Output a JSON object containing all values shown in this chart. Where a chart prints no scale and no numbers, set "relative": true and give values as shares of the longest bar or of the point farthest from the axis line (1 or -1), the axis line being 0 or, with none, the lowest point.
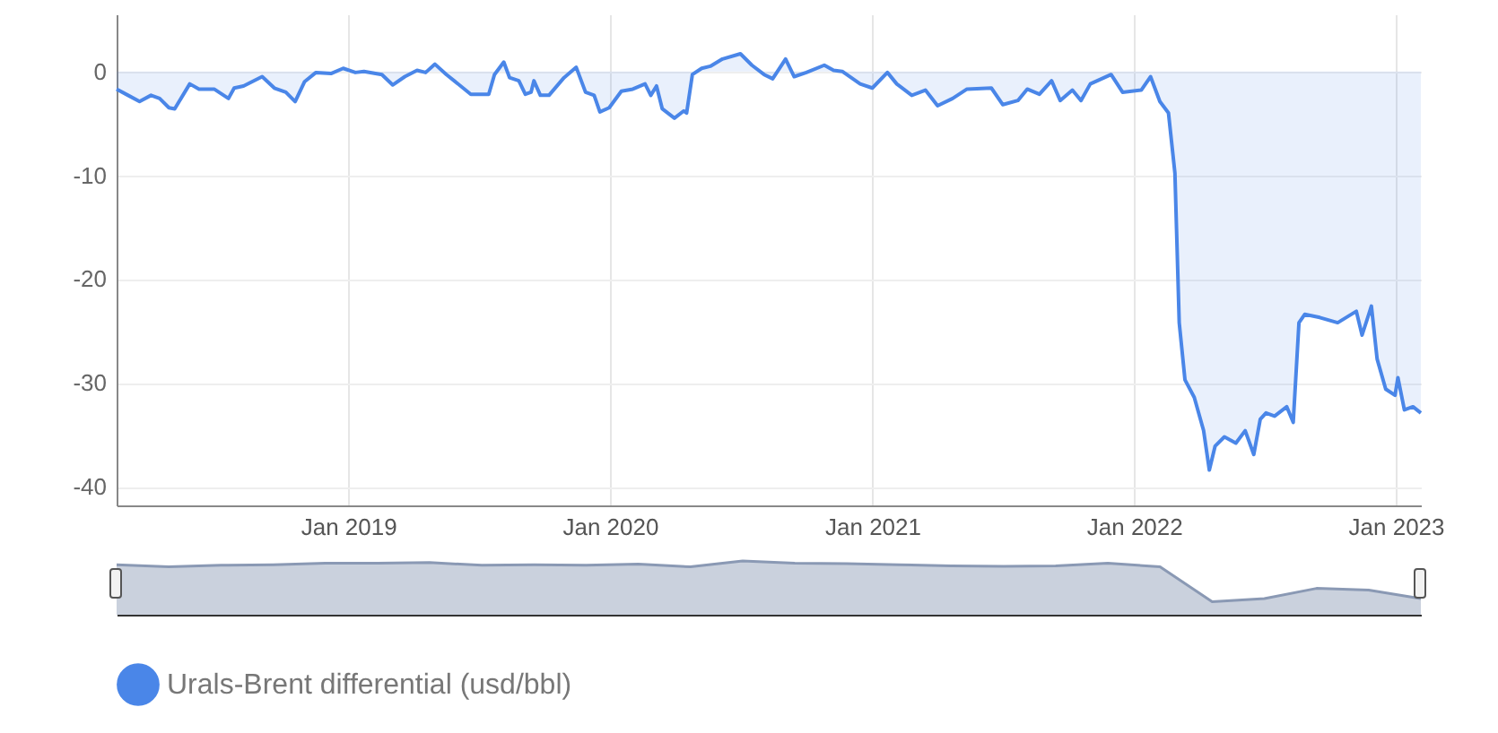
{
  "chart_data": [
    {
      "type": "area",
      "x": [
        "2018-02-12",
        "2018-02-28",
        "2018-03-16",
        "2018-04-01",
        "2018-04-13",
        "2018-04-26",
        "2018-05-04",
        "2018-05-25",
        "2018-06-07",
        "2018-06-28",
        "2018-07-18",
        "2018-07-26",
        "2018-08-08",
        "2018-09-03",
        "2018-09-20",
        "2018-10-06",
        "2018-10-19",
        "2018-11-01",
        "2018-11-17",
        "2018-12-08",
        "2018-12-25",
        "2019-01-11",
        "2019-01-23",
        "2019-02-17",
        "2019-03-04",
        "2019-03-21",
        "2019-04-07",
        "2019-04-19",
        "2019-05-02",
        "2019-05-18",
        "2019-06-21",
        "2019-07-16",
        "2019-07-24",
        "2019-08-06",
        "2019-08-14",
        "2019-08-27",
        "2019-09-05",
        "2019-09-13",
        "2019-09-17",
        "2019-09-26",
        "2019-10-08",
        "2019-10-29",
        "2019-11-15",
        "2019-11-28",
        "2019-12-10",
        "2019-12-18",
        "2019-12-31",
        "2020-01-17",
        "2020-02-02",
        "2020-02-19",
        "2020-02-27",
        "2020-03-06",
        "2020-03-14",
        "2020-03-31",
        "2020-04-13",
        "2020-04-17",
        "2020-04-25",
        "2020-05-08",
        "2020-05-20",
        "2020-06-06",
        "2020-07-01",
        "2020-07-17",
        "2020-08-03",
        "2020-08-15",
        "2020-09-02",
        "2020-09-14",
        "2020-10-01",
        "2020-10-26",
        "2020-11-08",
        "2020-11-20",
        "2020-12-15",
        "2021-01-01",
        "2021-01-22",
        "2021-02-04",
        "2021-02-25",
        "2021-03-16",
        "2021-04-02",
        "2021-04-23",
        "2021-05-13",
        "2021-06-16",
        "2021-07-02",
        "2021-07-23",
        "2021-08-05",
        "2021-08-22",
        "2021-09-08",
        "2021-09-20",
        "2021-10-07",
        "2021-10-19",
        "2021-11-01",
        "2021-11-30",
        "2021-12-16",
        "2022-01-11",
        "2022-01-24",
        "2022-02-06",
        "2022-02-18",
        "2022-02-27",
        "2022-03-05",
        "2022-03-13",
        "2022-03-26",
        "2022-04-08",
        "2022-04-16",
        "2022-04-24",
        "2022-05-07",
        "2022-05-23",
        "2022-06-05",
        "2022-06-17",
        "2022-06-26",
        "2022-07-04",
        "2022-07-16",
        "2022-08-02",
        "2022-08-11",
        "2022-08-19",
        "2022-08-27",
        "2022-09-17",
        "2022-10-12",
        "2022-11-07",
        "2022-11-15",
        "2022-11-28",
        "2022-12-06",
        "2022-12-18",
        "2022-12-31",
        "2023-01-04",
        "2023-01-13",
        "2023-01-25",
        "2023-02-05"
      ],
      "series": [
        {
          "name": "Urals-Brent differential (usd/bbl)",
          "color": "#4a86e8",
          "values": [
            -1.7,
            -2.3,
            -2.9,
            -2.3,
            -2.6,
            -3.5,
            -3.6,
            -1.2,
            -1.7,
            -1.7,
            -2.6,
            -1.6,
            -1.4,
            -0.5,
            -1.6,
            -2.0,
            -2.9,
            -1.0,
            -0.1,
            -0.2,
            0.3,
            -0.1,
            0,
            -0.3,
            -1.3,
            -0.5,
            0.1,
            -0.1,
            0.7,
            -0.3,
            -2.2,
            -2.2,
            -0.3,
            0.9,
            -0.6,
            -0.9,
            -2.2,
            -2.0,
            -0.9,
            -2.3,
            -2.3,
            -0.6,
            0.4,
            -2.0,
            -2.3,
            -3.9,
            -3.5,
            -1.9,
            -1.7,
            -1.2,
            -2.3,
            -1.4,
            -3.6,
            -4.5,
            -3.8,
            -4.0,
            -0.3,
            0.3,
            0.5,
            1.2,
            1.7,
            0.6,
            -0.3,
            -0.7,
            1.2,
            -0.5,
            -0.1,
            0.6,
            0.1,
            0,
            -1.2,
            -1.6,
            -0.1,
            -1.2,
            -2.3,
            -1.8,
            -3.3,
            -2.6,
            -1.7,
            -1.6,
            -3.2,
            -2.8,
            -1.7,
            -2.2,
            -0.9,
            -2.8,
            -1.8,
            -2.8,
            -1.2,
            -0.3,
            -2.0,
            -1.8,
            -0.5,
            -2.9,
            -4.0,
            -9.8,
            -24.2,
            -29.7,
            -31.4,
            -34.6,
            -38.4,
            -36.1,
            -35.2,
            -35.8,
            -34.6,
            -36.9,
            -33.5,
            -32.9,
            -33.2,
            -32.3,
            -33.8,
            -24.2,
            -23.4,
            -23.7,
            -24.2,
            -23.1,
            -25.4,
            -22.6,
            -27.7,
            -30.6,
            -31.2,
            -29.5,
            -32.6,
            -32.3,
            -32.9
          ]
        }
      ],
      "xlim": [
        "2018-02-12",
        "2023-02-05"
      ],
      "xticks": [
        {
          "value": "2019-01-01",
          "label": "Jan 2019"
        },
        {
          "value": "2020-01-01",
          "label": "Jan 2020"
        },
        {
          "value": "2021-01-01",
          "label": "Jan 2021"
        },
        {
          "value": "2022-01-01",
          "label": "Jan 2022"
        },
        {
          "value": "2023-01-01",
          "label": "Jan 2023"
        }
      ],
      "ylim": [
        -41.8,
        5.5
      ],
      "yticks": [
        -40,
        -30,
        -20,
        -10,
        0
      ],
      "grid": true,
      "legend": "bottom left"
    },
    {
      "type": "area",
      "categories": [
        null,
        null,
        null,
        null,
        null,
        null,
        null,
        null,
        null,
        null,
        null,
        null,
        null,
        null,
        null,
        null,
        null,
        null,
        null,
        null,
        null,
        null,
        null,
        null,
        null,
        null
      ],
      "series": [
        {
          "color": "#8a99b4",
          "values": [
            0.93,
            0.89,
            0.92,
            0.93,
            0.96,
            0.96,
            0.97,
            0.92,
            0.93,
            0.92,
            0.94,
            0.89,
            1,
            0.96,
            0.95,
            0.93,
            0.91,
            0.9,
            0.91,
            0.96,
            0.89,
            0.24,
            0.3,
            0.49,
            0.46,
            0.3
          ]
        }
      ],
      "relative": true
    }
  ]
}
